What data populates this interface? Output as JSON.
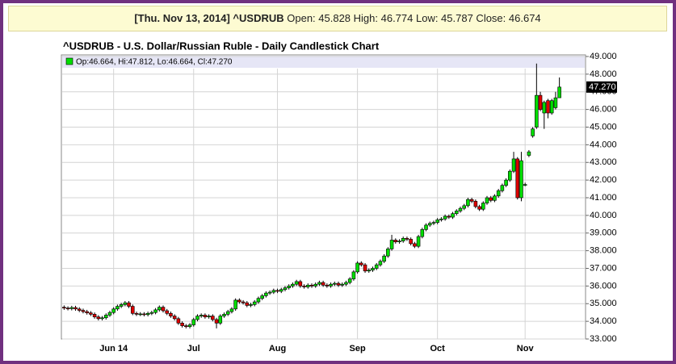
{
  "header": {
    "bold": "[Thu. Nov 13, 2014] ^USDRUB",
    "text": "Open: 45.828 High: 46.774 Low: 45.787 Close: 46.674"
  },
  "chart_data": {
    "type": "candlestick",
    "title": "^USDRUB - U.S. Dollar/Russian Ruble - Daily Candlestick Chart",
    "legend_label": "Op:46.664, Hi:47.812, Lo:46.664, Cl:47.270",
    "last_value_label": "47.270",
    "up_color": "#00dd00",
    "down_color": "#dd0000",
    "grid": true,
    "categories": [
      null,
      null,
      null,
      null,
      null,
      null,
      null,
      null,
      null,
      null,
      null,
      null,
      null,
      "Jun 14",
      null,
      null,
      null,
      null,
      null,
      null,
      null,
      null,
      null,
      null,
      null,
      null,
      null,
      null,
      null,
      null,
      null,
      null,
      null,
      null,
      "Jul",
      null,
      null,
      null,
      null,
      null,
      null,
      null,
      null,
      null,
      null,
      null,
      null,
      null,
      null,
      null,
      null,
      null,
      null,
      null,
      null,
      null,
      "Aug",
      null,
      null,
      null,
      null,
      null,
      null,
      null,
      null,
      null,
      null,
      null,
      null,
      null,
      null,
      null,
      null,
      null,
      null,
      null,
      null,
      "Sep",
      null,
      null,
      null,
      null,
      null,
      null,
      null,
      null,
      null,
      null,
      null,
      null,
      null,
      null,
      null,
      null,
      null,
      null,
      null,
      null,
      "Oct",
      null,
      null,
      null,
      null,
      null,
      null,
      null,
      null,
      null,
      null,
      null,
      null,
      null,
      null,
      null,
      null,
      null,
      null,
      null,
      null,
      null,
      null,
      "Nov",
      null,
      null,
      null,
      null,
      null,
      null,
      null,
      null,
      null
    ],
    "open": [
      34.8,
      34.75,
      34.72,
      34.78,
      34.7,
      34.62,
      34.55,
      34.48,
      34.4,
      34.25,
      34.15,
      34.2,
      34.35,
      34.5,
      34.7,
      34.85,
      34.95,
      35.05,
      34.85,
      34.45,
      34.4,
      34.42,
      34.38,
      34.45,
      34.5,
      34.65,
      34.8,
      34.6,
      34.45,
      34.3,
      34.15,
      33.9,
      33.75,
      33.7,
      33.8,
      34.1,
      34.3,
      34.35,
      34.25,
      34.3,
      34.1,
      33.9,
      34.3,
      34.4,
      34.55,
      34.7,
      35.2,
      35.1,
      35.05,
      34.9,
      34.95,
      35.1,
      35.3,
      35.45,
      35.6,
      35.65,
      35.75,
      35.7,
      35.8,
      35.9,
      36.0,
      36.1,
      36.25,
      36.0,
      35.95,
      36.05,
      36.0,
      36.1,
      36.2,
      36.05,
      36.0,
      36.1,
      36.15,
      36.05,
      36.1,
      36.2,
      36.4,
      36.8,
      37.3,
      37.2,
      36.85,
      36.9,
      37.0,
      37.2,
      37.4,
      37.7,
      38.1,
      38.6,
      38.5,
      38.55,
      38.7,
      38.65,
      38.4,
      38.25,
      38.8,
      39.2,
      39.45,
      39.55,
      39.6,
      39.75,
      39.8,
      39.95,
      39.9,
      40.1,
      40.25,
      40.4,
      40.55,
      40.9,
      40.8,
      40.5,
      40.35,
      40.7,
      41.0,
      40.85,
      41.1,
      41.4,
      41.7,
      42.0,
      42.5,
      43.2,
      41.0,
      41.75,
      43.4,
      44.5,
      45.0,
      46.8,
      45.8,
      46.5,
      45.8,
      46.1,
      46.664
    ],
    "high": [
      34.9,
      34.85,
      34.88,
      34.88,
      34.8,
      34.72,
      34.65,
      34.58,
      34.5,
      34.35,
      34.3,
      34.45,
      34.6,
      34.8,
      34.95,
      35.05,
      35.15,
      35.15,
      34.95,
      34.55,
      34.52,
      34.52,
      34.55,
      34.6,
      34.75,
      34.9,
      34.9,
      34.7,
      34.55,
      34.4,
      34.25,
      34.0,
      33.85,
      33.9,
      34.2,
      34.4,
      34.45,
      34.45,
      34.4,
      34.4,
      34.2,
      34.4,
      34.5,
      34.65,
      34.8,
      35.3,
      35.3,
      35.2,
      35.15,
      35.05,
      35.2,
      35.4,
      35.55,
      35.7,
      35.75,
      35.85,
      35.85,
      35.9,
      36.0,
      36.1,
      36.2,
      36.35,
      36.35,
      36.1,
      36.15,
      36.15,
      36.2,
      36.3,
      36.3,
      36.15,
      36.2,
      36.25,
      36.25,
      36.2,
      36.3,
      36.5,
      36.9,
      37.4,
      37.4,
      37.3,
      37.0,
      37.1,
      37.3,
      37.5,
      37.8,
      38.2,
      38.9,
      38.7,
      38.65,
      38.8,
      38.8,
      38.75,
      38.5,
      38.9,
      39.3,
      39.55,
      39.65,
      39.7,
      39.85,
      39.9,
      40.05,
      40.05,
      40.2,
      40.35,
      40.5,
      40.65,
      41.0,
      41.0,
      40.9,
      40.6,
      40.8,
      41.1,
      41.1,
      41.2,
      41.5,
      41.8,
      42.1,
      42.6,
      43.6,
      43.3,
      43.6,
      41.85,
      43.7,
      45.0,
      48.6,
      47.0,
      46.5,
      46.6,
      46.6,
      47.0,
      47.812
    ],
    "low": [
      34.65,
      34.62,
      34.62,
      34.6,
      34.52,
      34.45,
      34.38,
      34.3,
      34.15,
      34.05,
      34.05,
      34.1,
      34.25,
      34.4,
      34.6,
      34.75,
      34.85,
      34.75,
      34.35,
      34.3,
      34.3,
      34.28,
      34.28,
      34.35,
      34.4,
      34.55,
      34.5,
      34.35,
      34.2,
      34.05,
      33.8,
      33.65,
      33.6,
      33.6,
      33.7,
      34.0,
      34.2,
      34.15,
      34.15,
      34.0,
      33.6,
      33.8,
      34.2,
      34.3,
      34.45,
      34.6,
      35.0,
      34.95,
      34.8,
      34.8,
      34.85,
      35.0,
      35.2,
      35.35,
      35.5,
      35.55,
      35.6,
      35.6,
      35.7,
      35.8,
      35.9,
      36.0,
      35.9,
      35.85,
      35.85,
      35.9,
      35.9,
      36.0,
      35.95,
      35.9,
      35.9,
      36.0,
      35.95,
      35.95,
      36.0,
      36.1,
      36.3,
      36.7,
      37.1,
      36.75,
      36.75,
      36.8,
      36.9,
      37.1,
      37.3,
      37.6,
      38.0,
      38.4,
      38.4,
      38.45,
      38.55,
      38.3,
      38.15,
      38.15,
      38.7,
      39.1,
      39.35,
      39.45,
      39.5,
      39.65,
      39.7,
      39.8,
      39.8,
      40.0,
      40.15,
      40.3,
      40.45,
      40.7,
      40.4,
      40.25,
      40.25,
      40.6,
      40.75,
      40.75,
      41.0,
      41.3,
      41.6,
      41.9,
      42.4,
      40.9,
      40.8,
      41.65,
      43.3,
      44.4,
      44.9,
      45.9,
      44.9,
      45.5,
      45.7,
      46.0,
      46.664
    ],
    "close": [
      34.75,
      34.72,
      34.78,
      34.7,
      34.62,
      34.55,
      34.48,
      34.4,
      34.25,
      34.15,
      34.2,
      34.35,
      34.5,
      34.7,
      34.85,
      34.95,
      35.05,
      34.85,
      34.45,
      34.4,
      34.42,
      34.38,
      34.45,
      34.5,
      34.65,
      34.8,
      34.6,
      34.45,
      34.3,
      34.15,
      33.9,
      33.75,
      33.7,
      33.8,
      34.1,
      34.3,
      34.35,
      34.25,
      34.3,
      34.1,
      33.9,
      34.3,
      34.4,
      34.55,
      34.7,
      35.2,
      35.1,
      35.05,
      34.9,
      34.95,
      35.1,
      35.3,
      35.45,
      35.6,
      35.65,
      35.75,
      35.7,
      35.8,
      35.9,
      36.0,
      36.1,
      36.25,
      36.0,
      35.95,
      36.05,
      36.0,
      36.1,
      36.2,
      36.05,
      36.0,
      36.1,
      36.15,
      36.05,
      36.1,
      36.2,
      36.4,
      36.8,
      37.3,
      37.2,
      36.85,
      36.9,
      37.0,
      37.2,
      37.4,
      37.7,
      38.1,
      38.6,
      38.5,
      38.55,
      38.7,
      38.65,
      38.4,
      38.25,
      38.8,
      39.2,
      39.45,
      39.55,
      39.6,
      39.75,
      39.8,
      39.95,
      39.9,
      40.1,
      40.25,
      40.4,
      40.55,
      40.9,
      40.8,
      40.5,
      40.35,
      40.7,
      41.0,
      40.85,
      41.1,
      41.4,
      41.7,
      42.0,
      42.5,
      43.2,
      41.0,
      43.1,
      41.75,
      43.6,
      44.9,
      46.8,
      46.0,
      46.4,
      45.8,
      46.5,
      46.66,
      47.27
    ],
    "ylim": [
      33,
      49
    ],
    "yticks": [
      {
        "value": 33,
        "label": "33.000"
      },
      {
        "value": 34,
        "label": "34.000"
      },
      {
        "value": 35,
        "label": "35.000"
      },
      {
        "value": 36,
        "label": "36.000"
      },
      {
        "value": 37,
        "label": "37.000"
      },
      {
        "value": 38,
        "label": "38.000"
      },
      {
        "value": 39,
        "label": "39.000"
      },
      {
        "value": 40,
        "label": "40.000"
      },
      {
        "value": 41,
        "label": "41.000"
      },
      {
        "value": 42,
        "label": "42.000"
      },
      {
        "value": 43,
        "label": "43.000"
      },
      {
        "value": 44,
        "label": "44.000"
      },
      {
        "value": 45,
        "label": "45.000"
      },
      {
        "value": 46,
        "label": "46.000"
      },
      {
        "value": 47,
        "label": "47.000"
      },
      {
        "value": 48,
        "label": "48.000"
      },
      {
        "value": 49,
        "label": "49.000"
      }
    ]
  }
}
